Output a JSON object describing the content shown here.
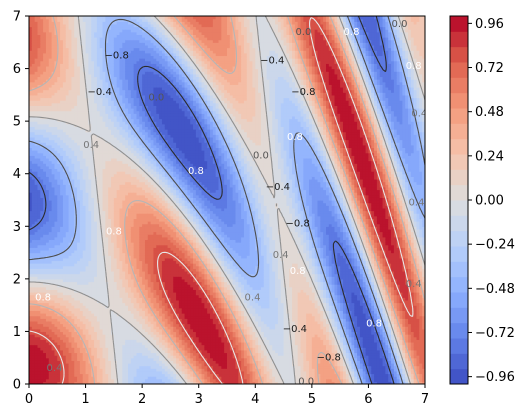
{
  "chart_data": {
    "type": "heatmap",
    "subtype": "filled-contour",
    "title": "",
    "xlabel": "",
    "ylabel": "",
    "xlim": [
      0,
      7
    ],
    "ylim": [
      0,
      7
    ],
    "x_ticks": [
      "0",
      "1",
      "2",
      "3",
      "4",
      "5",
      "6",
      "7"
    ],
    "y_ticks": [
      "0",
      "1",
      "2",
      "3",
      "4",
      "5",
      "6",
      "7"
    ],
    "colormap": "coolwarm",
    "color_range": [
      -1.0,
      1.0
    ],
    "colorbar_ticks": [
      "0.96",
      "0.72",
      "0.48",
      "0.24",
      "0.00",
      "−0.24",
      "−0.48",
      "−0.72",
      "−0.96"
    ],
    "colorbar_tick_values": [
      0.96,
      0.72,
      0.48,
      0.24,
      0.0,
      -0.24,
      -0.48,
      -0.72,
      -0.96
    ],
    "contour_levels": [
      -0.8,
      -0.4,
      0.0,
      0.4,
      0.8
    ],
    "contour_labels": [
      {
        "text": "−0.8",
        "x": 1.55,
        "y": 6.25,
        "color": "#1a1a1a"
      },
      {
        "text": "−0.4",
        "x": 1.25,
        "y": 5.55,
        "color": "#1a1a1a"
      },
      {
        "text": "0.0",
        "x": 2.25,
        "y": 5.45,
        "color": "#555555"
      },
      {
        "text": "0.4",
        "x": 1.1,
        "y": 4.55,
        "color": "#777777"
      },
      {
        "text": "0.8",
        "x": 2.95,
        "y": 4.05,
        "color": "#ffffff"
      },
      {
        "text": "0.8",
        "x": 1.5,
        "y": 2.9,
        "color": "#ffffff"
      },
      {
        "text": "0.8",
        "x": 0.25,
        "y": 1.65,
        "color": "#ffffff"
      },
      {
        "text": "0.4",
        "x": 0.45,
        "y": 0.3,
        "color": "#777777"
      },
      {
        "text": "−0.4",
        "x": 4.3,
        "y": 6.15,
        "color": "#1a1a1a"
      },
      {
        "text": "0.0",
        "x": 4.85,
        "y": 6.7,
        "color": "#555555"
      },
      {
        "text": "0.8",
        "x": 5.7,
        "y": 6.7,
        "color": "#ffffff"
      },
      {
        "text": "0.0",
        "x": 6.55,
        "y": 6.85,
        "color": "#555555"
      },
      {
        "text": "−0.8",
        "x": 4.85,
        "y": 5.55,
        "color": "#1a1a1a"
      },
      {
        "text": "0.8",
        "x": 4.7,
        "y": 4.7,
        "color": "#ffffff"
      },
      {
        "text": "0.0",
        "x": 4.1,
        "y": 4.35,
        "color": "#555555"
      },
      {
        "text": "−0.4",
        "x": 4.4,
        "y": 3.75,
        "color": "#1a1a1a"
      },
      {
        "text": "−0.8",
        "x": 4.75,
        "y": 3.05,
        "color": "#1a1a1a"
      },
      {
        "text": "0.4",
        "x": 4.45,
        "y": 2.45,
        "color": "#777777"
      },
      {
        "text": "0.8",
        "x": 4.75,
        "y": 2.15,
        "color": "#ffffff"
      },
      {
        "text": "0.4",
        "x": 3.95,
        "y": 1.65,
        "color": "#777777"
      },
      {
        "text": "−0.4",
        "x": 4.7,
        "y": 1.05,
        "color": "#1a1a1a"
      },
      {
        "text": "−0.8",
        "x": 5.3,
        "y": 0.5,
        "color": "#1a1a1a"
      },
      {
        "text": "0.8",
        "x": 6.1,
        "y": 1.15,
        "color": "#ffffff"
      },
      {
        "text": "0.0",
        "x": 4.9,
        "y": 0.05,
        "color": "#555555"
      },
      {
        "text": "0.8",
        "x": 6.8,
        "y": 6.05,
        "color": "#ffffff"
      },
      {
        "text": "0.4",
        "x": 6.9,
        "y": 5.15,
        "color": "#777777"
      },
      {
        "text": "0.4",
        "x": 6.85,
        "y": 3.45,
        "color": "#777777"
      },
      {
        "text": "0.4",
        "x": 6.8,
        "y": 1.9,
        "color": "#777777"
      }
    ]
  }
}
